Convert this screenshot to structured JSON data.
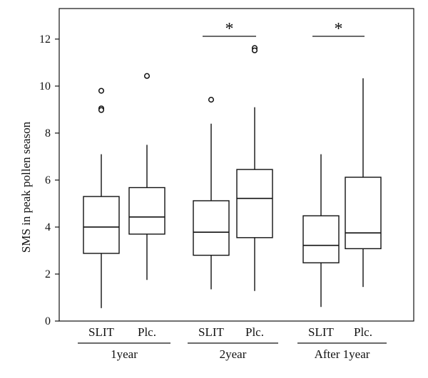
{
  "chart_data": {
    "type": "box",
    "ylabel": "SMS in peak pollen season",
    "xlabel": "",
    "ylim": [
      0,
      13.3
    ],
    "yticks": [
      0,
      2,
      4,
      6,
      8,
      10,
      12
    ],
    "grid": false,
    "groups": [
      {
        "label": "1year",
        "boxes": [
          {
            "category": "SLIT",
            "whisker_low": 0.55,
            "q1": 2.88,
            "median": 4.0,
            "q3": 5.3,
            "whisker_high": 7.1,
            "outliers": [
              9.8,
              9.05,
              8.98
            ]
          },
          {
            "category": "Plc.",
            "whisker_low": 1.75,
            "q1": 3.7,
            "median": 4.43,
            "q3": 5.68,
            "whisker_high": 7.5,
            "outliers": [
              10.43
            ]
          }
        ],
        "significance": ""
      },
      {
        "label": "2year",
        "boxes": [
          {
            "category": "SLIT",
            "whisker_low": 1.35,
            "q1": 2.8,
            "median": 3.78,
            "q3": 5.12,
            "whisker_high": 8.4,
            "outliers": [
              9.42
            ]
          },
          {
            "category": "Plc.",
            "whisker_low": 1.28,
            "q1": 3.55,
            "median": 5.22,
            "q3": 6.45,
            "whisker_high": 9.1,
            "outliers": [
              11.62,
              11.52
            ]
          }
        ],
        "significance": "*"
      },
      {
        "label": "After 1year",
        "boxes": [
          {
            "category": "SLIT",
            "whisker_low": 0.6,
            "q1": 2.48,
            "median": 3.22,
            "q3": 4.48,
            "whisker_high": 7.1,
            "outliers": []
          },
          {
            "category": "Plc.",
            "whisker_low": 1.45,
            "q1": 3.08,
            "median": 3.75,
            "q3": 6.12,
            "whisker_high": 10.33,
            "outliers": []
          }
        ],
        "significance": "*"
      }
    ]
  }
}
